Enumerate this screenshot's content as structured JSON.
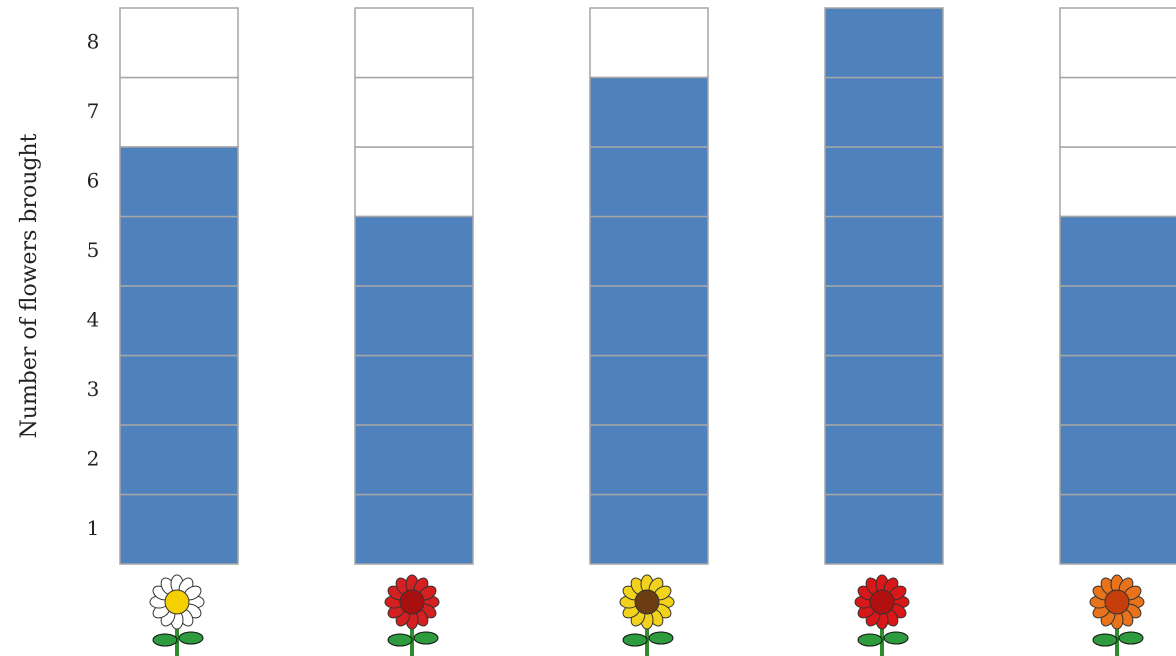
{
  "chart_data": {
    "type": "bar",
    "ylabel": "Number of flowers brought",
    "categories": [
      null,
      null,
      null,
      null,
      null
    ],
    "values": [
      6,
      5,
      7,
      8,
      5
    ],
    "color": "#4f81bd",
    "ylim": [
      0.5,
      8.5
    ],
    "yticks": [
      1,
      2,
      3,
      4,
      5,
      6,
      7,
      8
    ]
  }
}
